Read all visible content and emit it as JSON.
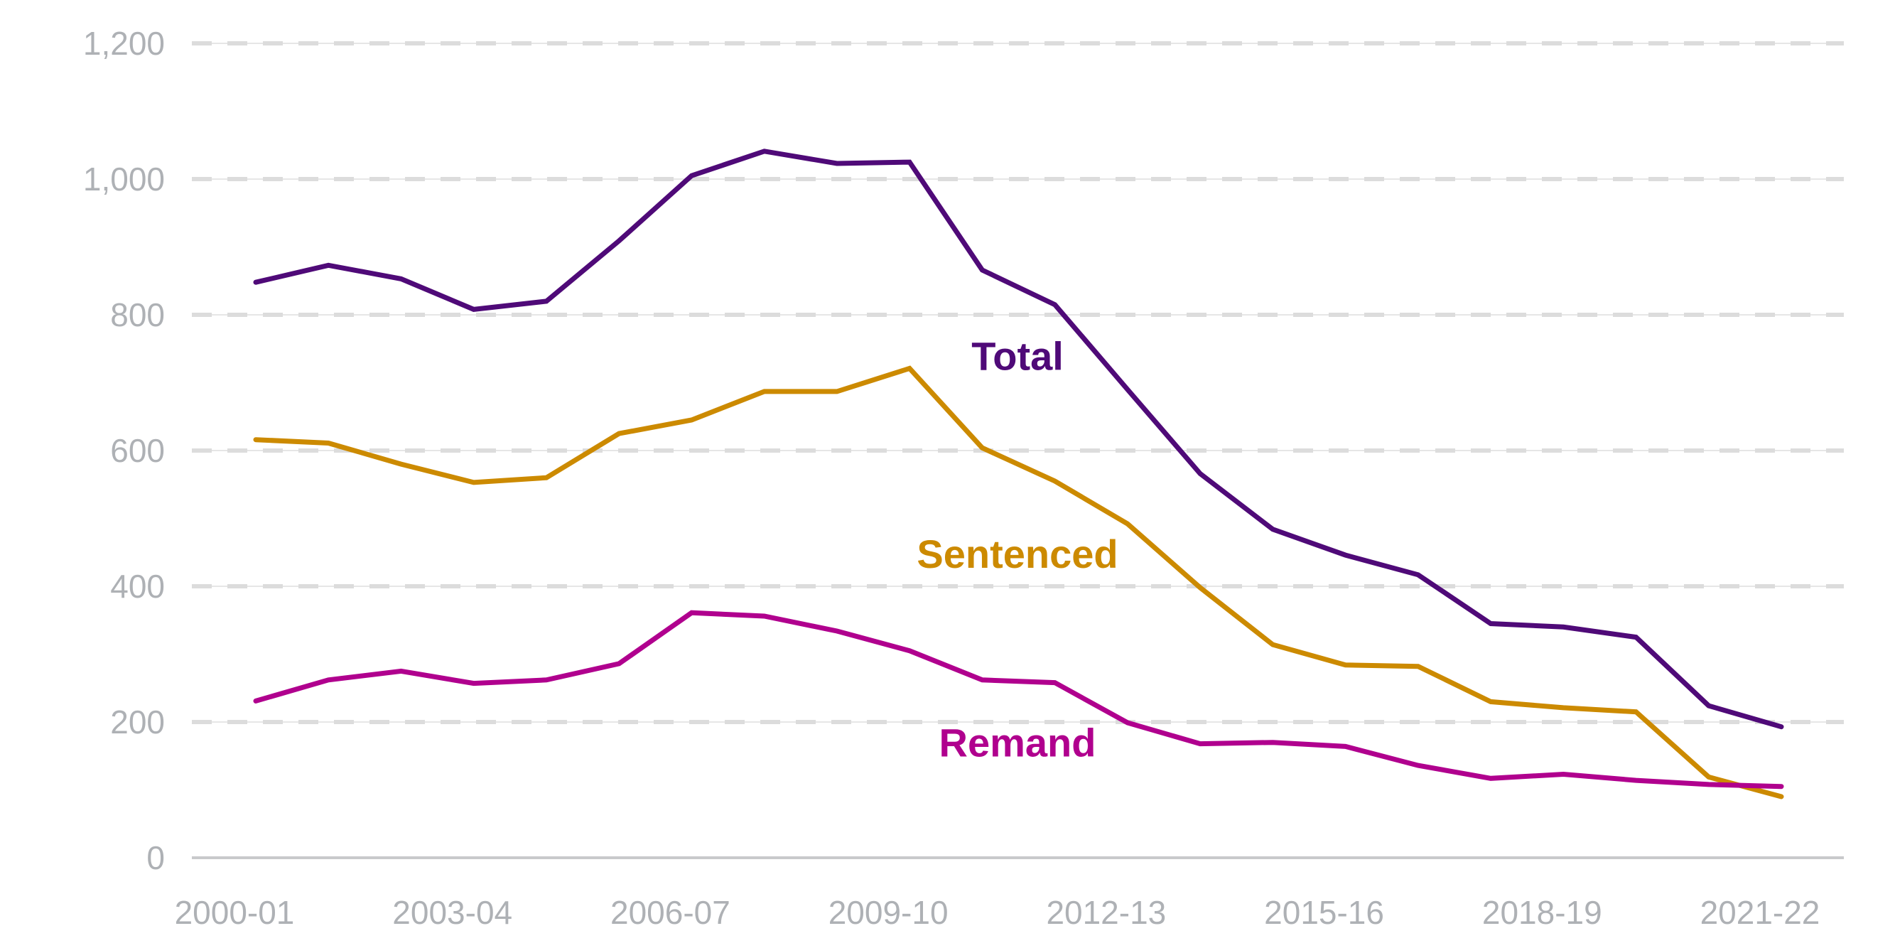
{
  "chart_data": {
    "type": "line",
    "title": "",
    "xlabel": "",
    "ylabel": "",
    "ylim": [
      0,
      1200
    ],
    "y_ticks": [
      0,
      200,
      400,
      600,
      800,
      1000,
      1200
    ],
    "y_tick_labels": [
      "0",
      "200",
      "400",
      "600",
      "800",
      "1,000",
      "1,200"
    ],
    "x": [
      "2000-01",
      "2001-02",
      "2002-03",
      "2003-04",
      "2004-05",
      "2005-06",
      "2006-07",
      "2007-08",
      "2008-09",
      "2009-10",
      "2010-11",
      "2011-12",
      "2012-13",
      "2013-14",
      "2014-15",
      "2015-16",
      "2016-17",
      "2017-18",
      "2018-19",
      "2019-20",
      "2020-21",
      "2021-22"
    ],
    "x_tick_labels": [
      "2000-01",
      "2003-04",
      "2006-07",
      "2009-10",
      "2012-13",
      "2015-16",
      "2018-19",
      "2021-22"
    ],
    "grid": true,
    "legend": "inline labels",
    "series": [
      {
        "name": "Total",
        "color": "#4f0a78",
        "label_anchor_index": 10,
        "values": [
          848,
          873,
          853,
          808,
          820,
          909,
          1005,
          1041,
          1023,
          1025,
          866,
          815,
          690,
          566,
          484,
          446,
          417,
          345,
          340,
          325,
          224,
          193
        ]
      },
      {
        "name": "Sentenced",
        "color": "#cc8a00",
        "label_anchor_index": 10,
        "values": [
          616,
          611,
          580,
          553,
          560,
          625,
          645,
          687,
          687,
          721,
          604,
          555,
          492,
          398,
          314,
          284,
          282,
          230,
          221,
          215,
          119,
          90
        ]
      },
      {
        "name": "Remand",
        "color": "#b0008e",
        "label_anchor_index": 10,
        "values": [
          231,
          262,
          275,
          257,
          262,
          286,
          361,
          356,
          334,
          305,
          262,
          258,
          199,
          168,
          170,
          164,
          136,
          117,
          123,
          114,
          108,
          105
        ]
      }
    ],
    "series_labels": [
      {
        "text": "Total",
        "value": 740
      },
      {
        "text": "Sentenced",
        "value": 448
      },
      {
        "text": "Remand",
        "value": 170
      }
    ]
  }
}
